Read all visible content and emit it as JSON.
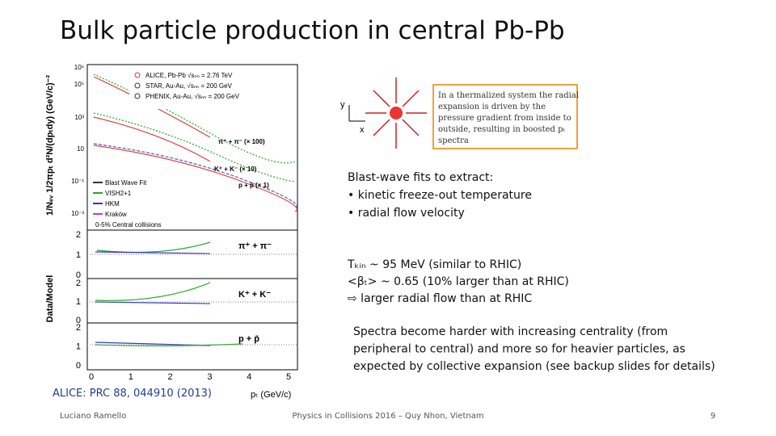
{
  "title": "Bulk particle production in central Pb-Pb",
  "figure": {
    "y_label": "1/Nₑᵥ 1/2πpₜ d²N/(dpₜdy) (GeV/c)⁻²",
    "y_ticks": [
      "10⁶",
      "10⁵",
      "10³",
      "10",
      "10⁻¹",
      "10⁻³"
    ],
    "data_legend": [
      "ALICE, Pb-Pb √sₙₙ = 2.76 TeV",
      "STAR, Au-Au, √sₙₙ = 200 GeV",
      "PHENIX, Au-Au, √sₙₙ = 200 GeV"
    ],
    "species_labels": [
      "π⁺ + π⁻ (× 100)",
      "K⁺ + K⁻ (× 10)",
      "p + p̄ (× 1)"
    ],
    "model_legend": [
      "Blast Wave Fit",
      "VISH2+1",
      "HKM",
      "Kraków",
      "0-5% Central collisions"
    ],
    "ratio_label": "Data/Model",
    "ratio_ticks": [
      "2",
      "1",
      "0"
    ],
    "ratio_panels": [
      "π⁺ + π⁻",
      "K⁺ + K⁻",
      "p + p̄"
    ],
    "x_ticks": [
      "0",
      "1",
      "2",
      "3",
      "4",
      "5"
    ],
    "x_label": "pₜ (GeV/c)"
  },
  "inset": {
    "y": "y",
    "x": "x",
    "box_lines": [
      "In a thermalized system the radial",
      "expansion is driven by the",
      "pressure gradient from inside to",
      "outside, resulting in boosted pₜ",
      "spectra"
    ]
  },
  "bullets": [
    "Blast-wave fits to extract:",
    "• kinetic freeze-out temperature",
    "• radial flow velocity"
  ],
  "results": [
    "Tₖᵢₙ ~ 95 MeV (similar to RHIC)",
    "<βₜ> ~ 0.65 (10% larger than at RHIC)",
    "⇨ larger radial flow than at RHIC"
  ],
  "paragraph": [
    "Spectra become harder with increasing centrality (from",
    "peripheral to central) and more so for heavier particles, as",
    "expected by collective expansion (see backup slides for details)"
  ],
  "citation": "ALICE: PRC 88, 044910 (2013)",
  "footer": {
    "author": "Luciano Ramello",
    "event": "Physics in Collisions 2016 – Quy Nhon, Vietnam",
    "page": "9"
  }
}
